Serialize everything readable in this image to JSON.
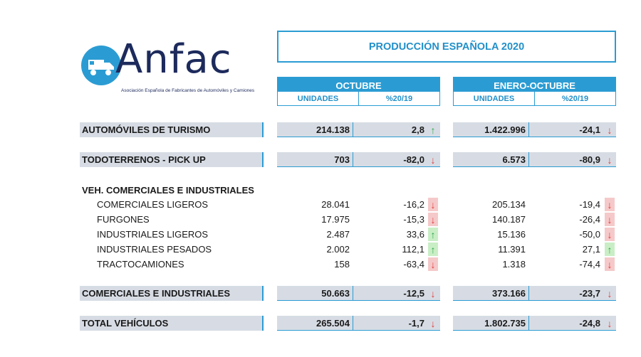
{
  "logo": {
    "brand": "Anfac",
    "subtitle": "Asociación Española de Fabricantes de Automóviles y Camiones"
  },
  "title": "PRODUCCIÓN ESPAÑOLA 2020",
  "groups": [
    {
      "name": "OCTUBRE",
      "col_units": "UNIDADES",
      "col_pct": "%20/19"
    },
    {
      "name": "ENERO-OCTUBRE",
      "col_units": "UNIDADES",
      "col_pct": "%20/19"
    }
  ],
  "rows": {
    "turismo": {
      "label": "AUTOMÓVILES DE TURISMO",
      "oct_units": "214.138",
      "oct_pct": "2,8",
      "oct_trend": "up",
      "ytd_units": "1.422.996",
      "ytd_pct": "-24,1",
      "ytd_trend": "down"
    },
    "todoterrenos": {
      "label": "TODOTERRENOS - PICK UP",
      "oct_units": "703",
      "oct_pct": "-82,0",
      "oct_trend": "down",
      "ytd_units": "6.573",
      "ytd_pct": "-80,9",
      "ytd_trend": "down"
    },
    "section_label": "VEH. COMERCIALES E INDUSTRIALES",
    "comerciales_ligeros": {
      "label": "COMERCIALES LIGEROS",
      "oct_units": "28.041",
      "oct_pct": "-16,2",
      "oct_trend": "down",
      "ytd_units": "205.134",
      "ytd_pct": "-19,4",
      "ytd_trend": "down"
    },
    "furgones": {
      "label": "FURGONES",
      "oct_units": "17.975",
      "oct_pct": "-15,3",
      "oct_trend": "down",
      "ytd_units": "140.187",
      "ytd_pct": "-26,4",
      "ytd_trend": "down"
    },
    "industriales_ligeros": {
      "label": "INDUSTRIALES LIGEROS",
      "oct_units": "2.487",
      "oct_pct": "33,6",
      "oct_trend": "up",
      "ytd_units": "15.136",
      "ytd_pct": "-50,0",
      "ytd_trend": "down"
    },
    "industriales_pesados": {
      "label": "INDUSTRIALES PESADOS",
      "oct_units": "2.002",
      "oct_pct": "112,1",
      "oct_trend": "up",
      "ytd_units": "11.391",
      "ytd_pct": "27,1",
      "ytd_trend": "up"
    },
    "tractocamiones": {
      "label": "TRACTOCAMIONES",
      "oct_units": "158",
      "oct_pct": "-63,4",
      "oct_trend": "down",
      "ytd_units": "1.318",
      "ytd_pct": "-74,4",
      "ytd_trend": "down"
    },
    "comerciales_industriales": {
      "label": "COMERCIALES E INDUSTRIALES",
      "oct_units": "50.663",
      "oct_pct": "-12,5",
      "oct_trend": "down",
      "ytd_units": "373.166",
      "ytd_pct": "-23,7",
      "ytd_trend": "down"
    },
    "total": {
      "label": "TOTAL VEHÍCULOS",
      "oct_units": "265.504",
      "oct_pct": "-1,7",
      "oct_trend": "down",
      "ytd_units": "1.802.735",
      "ytd_pct": "-24,8",
      "ytd_trend": "down"
    }
  },
  "icons": {
    "up": "arrow-up-icon",
    "down": "arrow-down-icon"
  },
  "colors": {
    "accent": "#2b9cd3",
    "row_bg": "#d7dce4",
    "up": "#2ea84b",
    "down": "#e23b3b",
    "brand": "#1d2a5c"
  }
}
